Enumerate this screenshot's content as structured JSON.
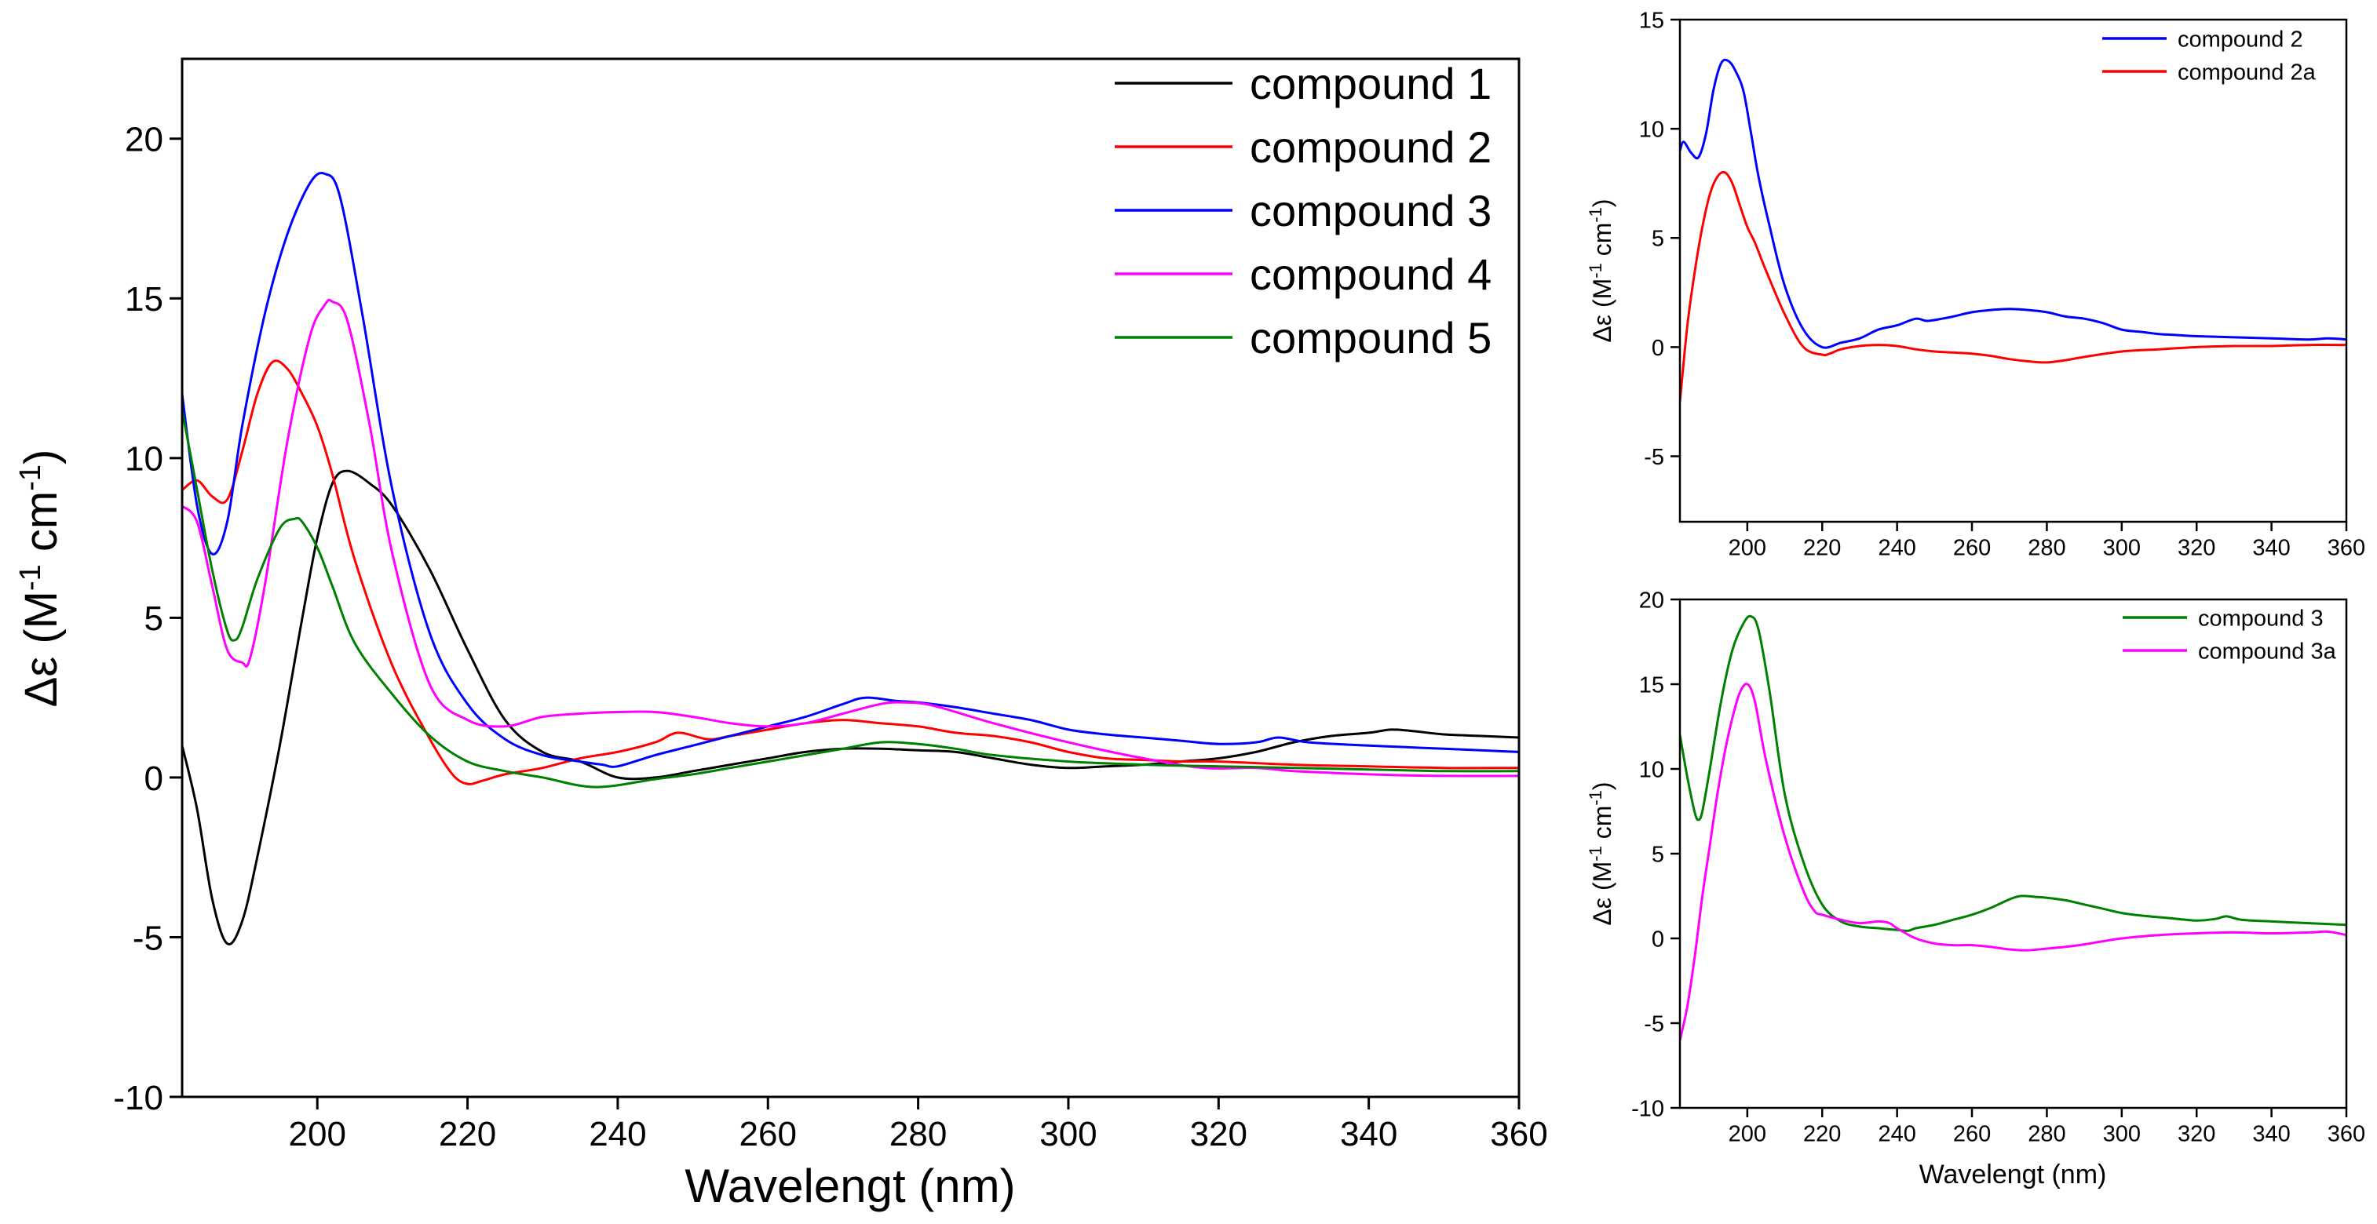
{
  "chart_data": [
    {
      "type": "line",
      "title": "",
      "xlabel": "Wavelengt (nm)",
      "ylabel_symbol": "Δε",
      "ylabel_open": " (M",
      "ylabel_sup1": "-1",
      "ylabel_mid": " cm",
      "ylabel_sup2": "-1",
      "ylabel_close": ")",
      "xlim": [
        182,
        360
      ],
      "ylim": [
        -10,
        22.5
      ],
      "xticks": [
        "200",
        "220",
        "240",
        "260",
        "280",
        "300",
        "320",
        "340",
        "360"
      ],
      "yticks": [
        "-10",
        "-5",
        "0",
        "5",
        "10",
        "15",
        "20"
      ],
      "legend_position": "top-right",
      "series": [
        {
          "name": "compound 1",
          "color": "#000000",
          "x": [
            182,
            184,
            186,
            188,
            190,
            192,
            195,
            198,
            200,
            202,
            204,
            207,
            210,
            215,
            220,
            225,
            230,
            235,
            240,
            245,
            250,
            255,
            260,
            265,
            270,
            275,
            280,
            285,
            290,
            295,
            300,
            305,
            310,
            315,
            320,
            325,
            330,
            335,
            340,
            343,
            346,
            350,
            355,
            360
          ],
          "y": [
            1.0,
            -1.0,
            -3.8,
            -5.2,
            -4.5,
            -2.5,
            1.0,
            5.0,
            7.5,
            9.2,
            9.6,
            9.2,
            8.5,
            6.5,
            4.0,
            1.8,
            0.8,
            0.5,
            0.0,
            0.0,
            0.2,
            0.4,
            0.6,
            0.8,
            0.9,
            0.9,
            0.85,
            0.8,
            0.6,
            0.4,
            0.3,
            0.35,
            0.4,
            0.5,
            0.6,
            0.8,
            1.1,
            1.3,
            1.4,
            1.5,
            1.45,
            1.35,
            1.3,
            1.25
          ]
        },
        {
          "name": "compound 2",
          "color": "#ff0000",
          "x": [
            182,
            184,
            186,
            188,
            190,
            192,
            194,
            196,
            198,
            200,
            202,
            205,
            210,
            215,
            218,
            220,
            222,
            225,
            230,
            235,
            240,
            245,
            248,
            252,
            255,
            260,
            265,
            270,
            275,
            280,
            285,
            290,
            295,
            300,
            305,
            310,
            315,
            320,
            330,
            340,
            350,
            360
          ],
          "y": [
            9.0,
            9.3,
            8.8,
            8.7,
            10.2,
            12.0,
            13.0,
            12.8,
            12.0,
            11.0,
            9.5,
            6.8,
            3.5,
            1.2,
            0.1,
            -0.2,
            -0.1,
            0.1,
            0.3,
            0.6,
            0.8,
            1.1,
            1.4,
            1.2,
            1.3,
            1.5,
            1.7,
            1.8,
            1.7,
            1.6,
            1.4,
            1.3,
            1.1,
            0.8,
            0.6,
            0.55,
            0.5,
            0.5,
            0.4,
            0.35,
            0.3,
            0.3
          ]
        },
        {
          "name": "compound 3",
          "color": "#0000ff",
          "x": [
            182,
            184,
            186,
            188,
            190,
            193,
            196,
            199,
            201,
            203,
            206,
            210,
            215,
            220,
            225,
            230,
            235,
            238,
            240,
            245,
            250,
            255,
            260,
            265,
            270,
            273,
            277,
            280,
            285,
            290,
            295,
            300,
            305,
            310,
            315,
            320,
            325,
            328,
            332,
            340,
            350,
            360
          ],
          "y": [
            12.0,
            8.5,
            7.0,
            8.0,
            11.0,
            14.5,
            17.0,
            18.6,
            18.9,
            18.2,
            14.5,
            9.0,
            4.5,
            2.3,
            1.2,
            0.7,
            0.5,
            0.4,
            0.35,
            0.7,
            1.0,
            1.3,
            1.6,
            1.9,
            2.3,
            2.5,
            2.4,
            2.35,
            2.2,
            2.0,
            1.8,
            1.5,
            1.35,
            1.25,
            1.15,
            1.05,
            1.1,
            1.25,
            1.1,
            1.0,
            0.9,
            0.8
          ]
        },
        {
          "name": "compound 4",
          "color": "#ff00ff",
          "x": [
            182,
            184,
            186,
            188,
            190,
            191,
            193,
            196,
            199,
            201,
            202,
            204,
            207,
            210,
            215,
            220,
            225,
            230,
            235,
            240,
            245,
            250,
            255,
            260,
            265,
            270,
            275,
            278,
            282,
            290,
            300,
            310,
            318,
            325,
            330,
            340,
            350,
            360
          ],
          "y": [
            8.5,
            8.0,
            6.0,
            4.0,
            3.6,
            3.7,
            6.0,
            10.5,
            13.8,
            14.8,
            14.9,
            14.3,
            11.0,
            7.0,
            2.9,
            1.8,
            1.6,
            1.9,
            2.0,
            2.05,
            2.05,
            1.9,
            1.7,
            1.6,
            1.7,
            2.0,
            2.3,
            2.35,
            2.25,
            1.7,
            1.1,
            0.6,
            0.3,
            0.3,
            0.2,
            0.1,
            0.05,
            0.05
          ]
        },
        {
          "name": "compound 5",
          "color": "#008000",
          "x": [
            182,
            184,
            186,
            188,
            189,
            190,
            192,
            195,
            197,
            198,
            200,
            202,
            205,
            210,
            215,
            220,
            225,
            230,
            237,
            245,
            250,
            255,
            260,
            265,
            270,
            275,
            280,
            285,
            290,
            300,
            310,
            320,
            330,
            340,
            350,
            360
          ],
          "y": [
            11.5,
            9.0,
            6.5,
            4.6,
            4.3,
            4.7,
            6.2,
            7.8,
            8.1,
            8.0,
            7.2,
            6.0,
            4.2,
            2.6,
            1.3,
            0.5,
            0.2,
            0.0,
            -0.3,
            -0.05,
            0.1,
            0.3,
            0.5,
            0.7,
            0.9,
            1.1,
            1.05,
            0.9,
            0.7,
            0.5,
            0.4,
            0.35,
            0.3,
            0.25,
            0.2,
            0.2
          ]
        }
      ]
    },
    {
      "type": "line",
      "title": "",
      "xlabel": "",
      "ylabel_symbol": "Δε",
      "ylabel_open": " (M",
      "ylabel_sup1": "-1",
      "ylabel_mid": " cm",
      "ylabel_sup2": "-1",
      "ylabel_close": ")",
      "xlim": [
        182,
        360
      ],
      "ylim": [
        -8,
        15
      ],
      "xticks": [
        "200",
        "220",
        "240",
        "260",
        "280",
        "300",
        "320",
        "340",
        "360"
      ],
      "yticks": [
        "-5",
        "0",
        "5",
        "10",
        "15"
      ],
      "legend_position": "top-right",
      "series": [
        {
          "name": "compound 2",
          "color": "#0000ff",
          "x": [
            182,
            183,
            185,
            187,
            189,
            191,
            193,
            195,
            197,
            199,
            201,
            203,
            206,
            210,
            215,
            220,
            225,
            230,
            235,
            240,
            245,
            248,
            252,
            255,
            260,
            265,
            270,
            275,
            280,
            285,
            290,
            295,
            300,
            305,
            310,
            315,
            320,
            330,
            340,
            350,
            355,
            360
          ],
          "y": [
            9.0,
            9.4,
            8.9,
            8.7,
            9.8,
            11.8,
            13.0,
            13.1,
            12.6,
            11.7,
            9.8,
            7.8,
            5.5,
            2.8,
            0.8,
            0.0,
            0.2,
            0.4,
            0.8,
            1.0,
            1.3,
            1.2,
            1.3,
            1.4,
            1.6,
            1.7,
            1.75,
            1.7,
            1.6,
            1.4,
            1.3,
            1.1,
            0.8,
            0.7,
            0.6,
            0.55,
            0.5,
            0.45,
            0.4,
            0.35,
            0.4,
            0.35
          ]
        },
        {
          "name": "compound 2a",
          "color": "#ff0000",
          "x": [
            182,
            184,
            186,
            188,
            190,
            192,
            194,
            196,
            198,
            200,
            202,
            205,
            210,
            215,
            220,
            222,
            225,
            230,
            235,
            240,
            245,
            250,
            255,
            260,
            265,
            270,
            275,
            280,
            285,
            290,
            300,
            310,
            320,
            330,
            340,
            350,
            360
          ],
          "y": [
            -2.5,
            1.0,
            3.5,
            5.5,
            7.0,
            7.8,
            8.0,
            7.5,
            6.5,
            5.5,
            4.8,
            3.5,
            1.5,
            0.0,
            -0.35,
            -0.3,
            -0.1,
            0.05,
            0.1,
            0.05,
            -0.1,
            -0.2,
            -0.25,
            -0.3,
            -0.4,
            -0.55,
            -0.65,
            -0.7,
            -0.6,
            -0.45,
            -0.2,
            -0.1,
            0.0,
            0.05,
            0.05,
            0.1,
            0.1
          ]
        }
      ]
    },
    {
      "type": "line",
      "title": "",
      "xlabel": "Wavelengt (nm)",
      "ylabel_symbol": "Δε",
      "ylabel_open": " (M",
      "ylabel_sup1": "-1",
      "ylabel_mid": " cm",
      "ylabel_sup2": "-1",
      "ylabel_close": ")",
      "xlim": [
        182,
        360
      ],
      "ylim": [
        -10,
        20
      ],
      "xticks": [
        "200",
        "220",
        "240",
        "260",
        "280",
        "300",
        "320",
        "340",
        "360"
      ],
      "yticks": [
        "-10",
        "-5",
        "0",
        "5",
        "10",
        "15",
        "20"
      ],
      "legend_position": "top-right",
      "series": [
        {
          "name": "compound 3",
          "color": "#008000",
          "x": [
            182,
            184,
            186,
            187,
            188,
            190,
            193,
            196,
            199,
            201,
            203,
            206,
            210,
            215,
            220,
            225,
            230,
            235,
            240,
            243,
            245,
            250,
            255,
            260,
            265,
            270,
            273,
            277,
            280,
            285,
            290,
            295,
            300,
            305,
            310,
            315,
            320,
            325,
            328,
            332,
            340,
            350,
            360
          ],
          "y": [
            12.0,
            9.5,
            7.4,
            7.0,
            7.5,
            10.0,
            14.0,
            17.0,
            18.6,
            19.0,
            18.2,
            14.5,
            8.5,
            4.5,
            2.0,
            1.0,
            0.7,
            0.6,
            0.5,
            0.45,
            0.6,
            0.8,
            1.1,
            1.4,
            1.8,
            2.3,
            2.5,
            2.45,
            2.4,
            2.25,
            2.0,
            1.75,
            1.5,
            1.35,
            1.25,
            1.15,
            1.05,
            1.15,
            1.3,
            1.1,
            1.0,
            0.9,
            0.8
          ]
        },
        {
          "name": "compound 3a",
          "color": "#ff00ff",
          "x": [
            182,
            184,
            186,
            188,
            190,
            192,
            194,
            196,
            198,
            200,
            202,
            205,
            210,
            215,
            218,
            220,
            225,
            230,
            235,
            238,
            240,
            245,
            250,
            255,
            260,
            265,
            270,
            275,
            280,
            285,
            290,
            300,
            310,
            320,
            330,
            340,
            350,
            355,
            360
          ],
          "y": [
            -6.0,
            -4.0,
            -1.0,
            2.5,
            5.5,
            8.5,
            11.0,
            13.0,
            14.5,
            15.0,
            14.0,
            10.5,
            6.0,
            2.8,
            1.6,
            1.4,
            1.1,
            0.9,
            1.0,
            0.9,
            0.6,
            0.0,
            -0.3,
            -0.4,
            -0.4,
            -0.5,
            -0.65,
            -0.7,
            -0.6,
            -0.5,
            -0.35,
            0.0,
            0.2,
            0.3,
            0.35,
            0.3,
            0.35,
            0.4,
            0.2
          ]
        }
      ]
    }
  ]
}
